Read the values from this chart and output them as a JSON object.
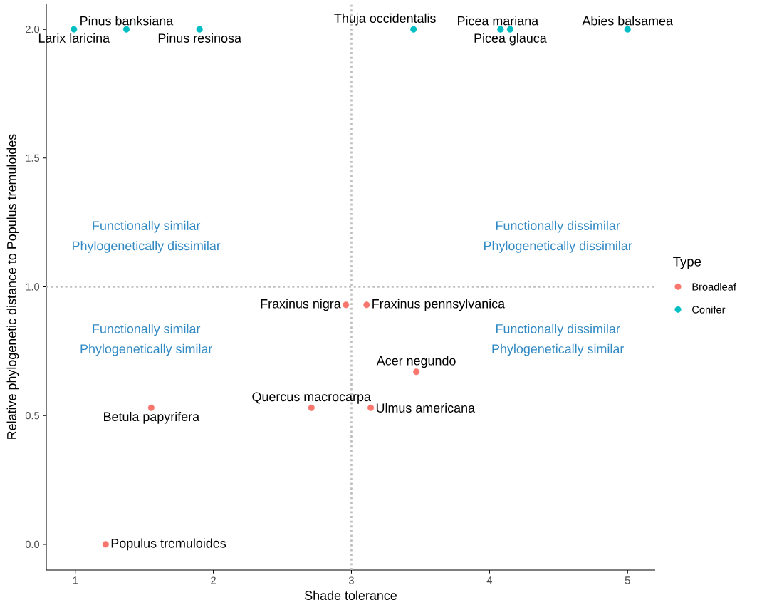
{
  "chart_data": {
    "type": "scatter",
    "xlabel": "Shade tolerance",
    "ylabel": "Relative phylogenetic distance to Populus tremuloides",
    "legend_title": "Type",
    "legend": "right",
    "marker": "circle",
    "grid": false,
    "xlim": [
      0.79,
      5.2
    ],
    "ylim": [
      -0.1,
      2.1
    ],
    "xticks": [
      1,
      2,
      3,
      4,
      5
    ],
    "yticks": [
      {
        "value": 0,
        "label": "0.0"
      },
      {
        "value": 0.5,
        "label": "0.5"
      },
      {
        "value": 1,
        "label": "1.0"
      },
      {
        "value": 1.5,
        "label": "1.5"
      },
      {
        "value": 2,
        "label": "2.0"
      }
    ],
    "ref_lines": [
      {
        "axis": "x",
        "value": 3,
        "color": "#bebebe",
        "line_style": "dotted"
      },
      {
        "axis": "y",
        "value": 1,
        "color": "#bebebe",
        "line_style": "dotted"
      }
    ],
    "series": [
      {
        "name": "Broadleaf",
        "color": "#f8766d",
        "x": [
          2.96,
          3.11,
          3.47,
          2.71,
          3.14,
          1.55,
          1.22
        ],
        "values": [
          0.93,
          0.93,
          0.67,
          0.53,
          0.53,
          0.53,
          0.0
        ],
        "value_labels": [
          "Fraxinus nigra",
          "Fraxinus pennsylvanica",
          "Acer negundo",
          "Quercus macrocarpa",
          "Ulmus americana",
          "Betula papyrifera",
          "Populus tremuloides"
        ]
      },
      {
        "name": "Conifer",
        "color": "#00bfc4",
        "x": [
          0.99,
          1.37,
          1.9,
          3.45,
          4.08,
          4.15,
          5.0
        ],
        "values": [
          2,
          2,
          2,
          2,
          2,
          2,
          2
        ],
        "value_labels": [
          "Larix laricina",
          "Pinus banksiana",
          "Pinus resinosa",
          "Thuja occidentalis",
          "Picea mariana",
          "Picea glauca",
          "Abies balsamea"
        ]
      }
    ],
    "annotations": [
      "Functionally similar",
      "Phylogenetically dissimilar",
      "Functionally dissimilar",
      "Phylogenetically dissimilar",
      "Functionally similar",
      "Phylogenetically similar",
      "Functionally dissimilar",
      "Phylogenetically similar"
    ]
  }
}
